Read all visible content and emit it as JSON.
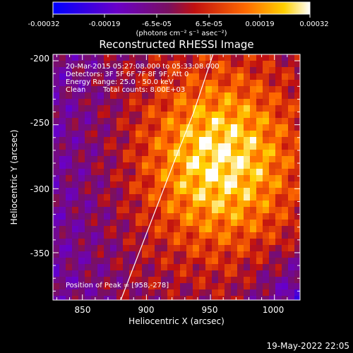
{
  "colorbar": {
    "tick_labels": [
      "-0.00032",
      "-0.00019",
      "-6.5e-05",
      "6.5e-05",
      "0.00019",
      "0.00032"
    ],
    "unit_label": "(photons cm⁻² s⁻¹ asec⁻²)",
    "range": [
      -0.00032,
      0.00032
    ]
  },
  "chart_data": {
    "type": "heatmap",
    "title": "Reconstructed RHESSI Image",
    "xlabel": "Heliocentric X (arcsec)",
    "ylabel": "Heliocentric Y (arcsec)",
    "x_ticks": [
      "850",
      "900",
      "950",
      "1000"
    ],
    "y_ticks": [
      "-200",
      "-250",
      "-300",
      "-350"
    ],
    "x_tick_values": [
      850,
      900,
      950,
      1000
    ],
    "y_tick_values": [
      -200,
      -250,
      -300,
      -350
    ],
    "xlim": [
      827,
      1020
    ],
    "ylim": [
      -387,
      -195
    ],
    "annotations": [
      "20-Mar-2015 05:27:08.000 to 05:33:08.000",
      "Detectors: 3F 5F 6F 7F 8F 9F, Att 0",
      "Energy Range: 25.0 - 50.0 keV",
      "Clean",
      "Total counts: 8.00E+03"
    ],
    "peak_label": "Position of Peak = [958,-278]",
    "peak": [
      958,
      -278
    ],
    "limb_curve": [
      [
        880,
        -387
      ],
      [
        902,
        -330
      ],
      [
        922,
        -278
      ],
      [
        937,
        -240
      ],
      [
        952,
        -195
      ]
    ]
  },
  "footer": {
    "timestamp": "19-May-2022 22:05"
  }
}
